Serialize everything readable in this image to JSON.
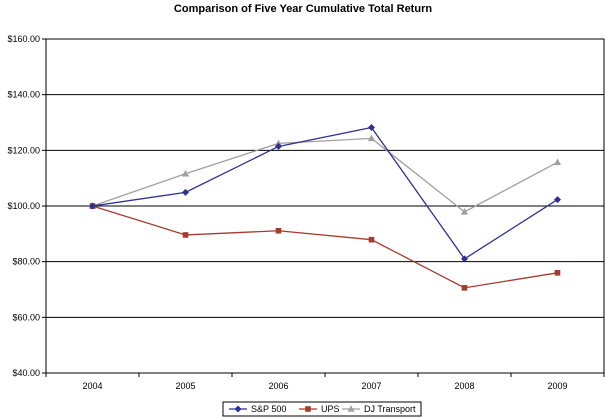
{
  "chart_data": {
    "type": "line",
    "title": "Comparison of Five Year Cumulative Total Return",
    "xlabel": "",
    "ylabel": "",
    "categories": [
      "2004",
      "2005",
      "2006",
      "2007",
      "2008",
      "2009"
    ],
    "ylim": [
      40,
      160
    ],
    "y_ticks": [
      40,
      60,
      80,
      100,
      120,
      140,
      160
    ],
    "y_tick_labels": [
      "$40.00",
      "$60.00",
      "$80.00",
      "$100.00",
      "$120.00",
      "$140.00",
      "$160.00"
    ],
    "grid": "horizontal",
    "legend_position": "bottom-center",
    "series": [
      {
        "name": "S&P 500",
        "values": [
          100.0,
          104.9,
          121.4,
          128.2,
          81.0,
          102.3
        ],
        "color": "#2e3192",
        "marker": "diamond"
      },
      {
        "name": "UPS",
        "values": [
          100.0,
          89.6,
          91.1,
          87.9,
          70.6,
          76.0
        ],
        "color": "#a63a2e",
        "marker": "square"
      },
      {
        "name": "DJ Transport",
        "values": [
          100.0,
          111.6,
          122.5,
          124.3,
          97.9,
          115.7
        ],
        "color": "#a0a0a0",
        "marker": "triangle"
      }
    ]
  }
}
